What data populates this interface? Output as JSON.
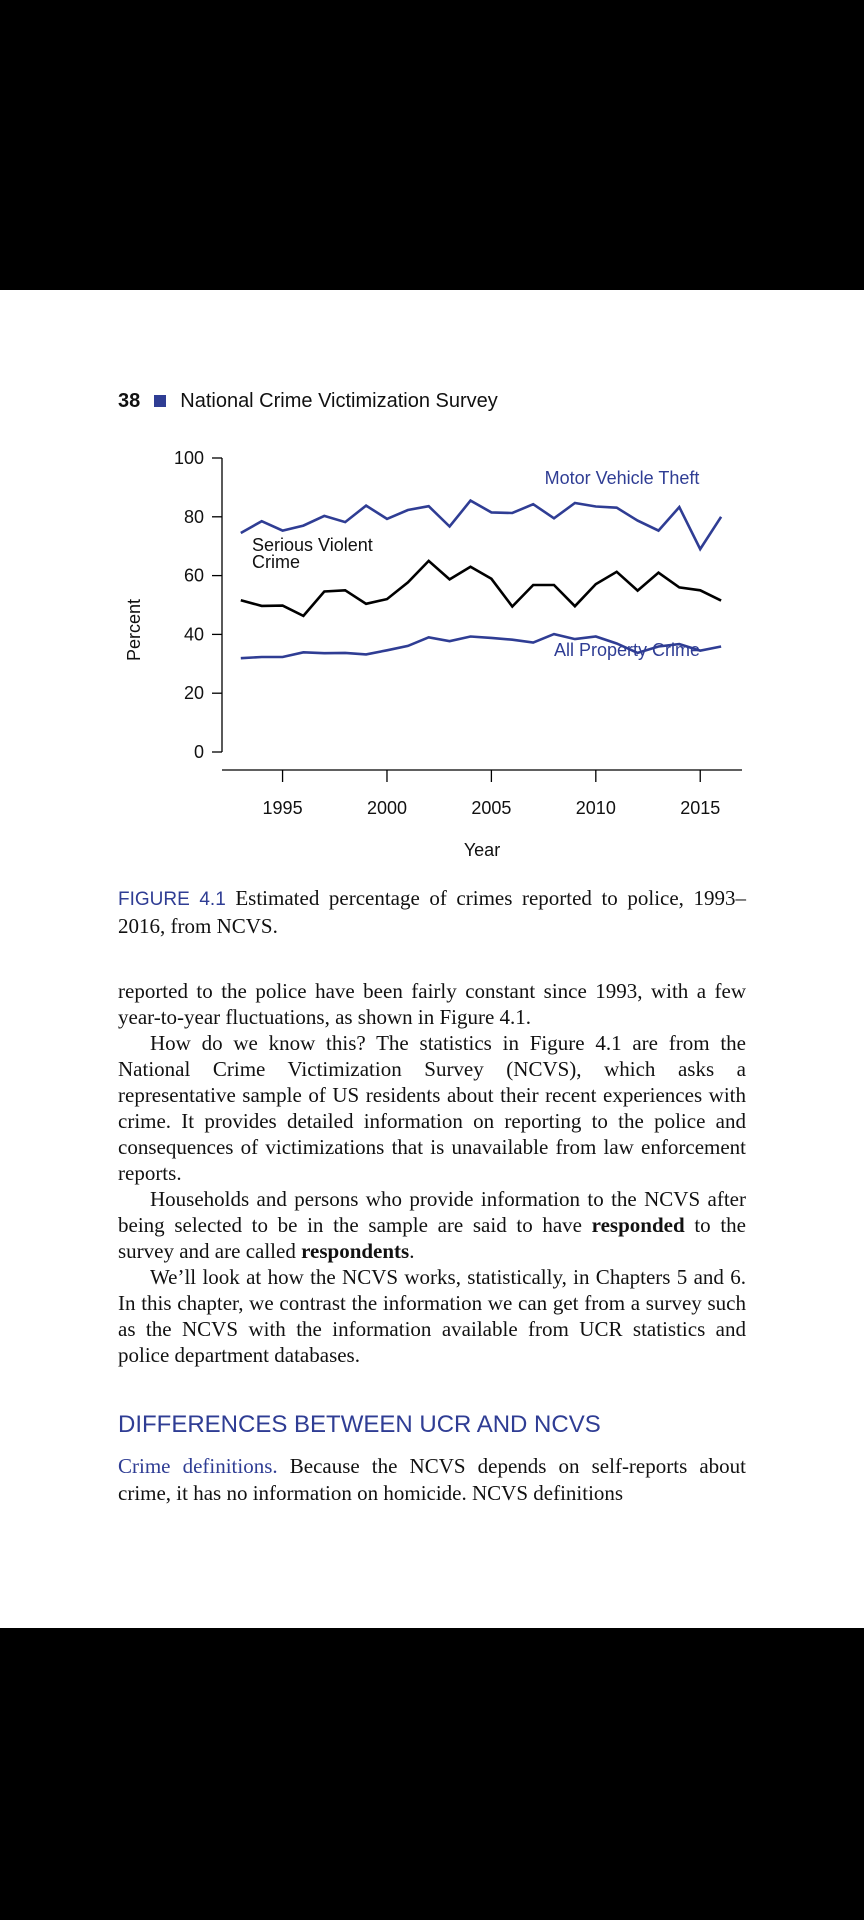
{
  "header": {
    "page_number": "38",
    "title": "National Crime Victimization Survey"
  },
  "chart_data": {
    "type": "line",
    "ylabel": "Percent",
    "xlabel": "Year",
    "xlim": [
      1993,
      2016
    ],
    "ylim": [
      0,
      100
    ],
    "xticks": [
      1995,
      2000,
      2005,
      2010,
      2015
    ],
    "yticks": [
      0,
      20,
      40,
      60,
      80,
      100
    ],
    "grid": false,
    "x": [
      1993,
      1994,
      1995,
      1996,
      1997,
      1998,
      1999,
      2000,
      2001,
      2002,
      2003,
      2004,
      2005,
      2006,
      2007,
      2008,
      2009,
      2010,
      2011,
      2012,
      2013,
      2014,
      2015,
      2016
    ],
    "series": [
      {
        "name": "Motor Vehicle Theft",
        "color": "#2f3d94",
        "values": [
          74.5,
          78.5,
          75.3,
          77,
          80.3,
          78.2,
          83.8,
          79.3,
          82.3,
          83.6,
          76.7,
          85.5,
          81.5,
          81.3,
          84.3,
          79.5,
          84.7,
          83.5,
          83.1,
          78.7,
          75.3,
          83.3,
          69,
          80
        ]
      },
      {
        "name": "Serious Violent Crime",
        "color": "#000000",
        "values": [
          51.6,
          49.7,
          49.8,
          46.3,
          54.6,
          55,
          50.4,
          52,
          57.7,
          65,
          58.7,
          63,
          58.9,
          49.5,
          56.8,
          56.8,
          49.6,
          57.1,
          61.3,
          54.9,
          61,
          56,
          55,
          51.5
        ]
      },
      {
        "name": "All Property Crime",
        "color": "#2f3d94",
        "values": [
          31.9,
          32.3,
          32.3,
          33.9,
          33.6,
          33.7,
          33.2,
          34.6,
          36.1,
          39,
          37.7,
          39.3,
          38.8,
          38.2,
          37.2,
          40.1,
          38.4,
          39.3,
          36.9,
          33.7,
          35.9,
          36.7,
          34.5,
          35.9
        ]
      }
    ]
  },
  "caption": {
    "label": "FIGURE 4.1",
    "text": "Estimated percentage of crimes reported to police, 1993–2016, from NCVS."
  },
  "paragraphs": {
    "p1": "reported to the police have been fairly constant since 1993, with a few year-to-year fluctuations, as shown in Figure 4.1.",
    "p2": "How do we know this? The statistics in Figure 4.1 are from the National Crime Victimization Survey (NCVS), which asks a representative sample of US residents about their recent experiences with crime. It provides detailed information on reporting to the police and consequences of victimizations that is unavailable from law enforcement reports.",
    "p3_a": "Households and persons who provide information to the NCVS after being selected to be in the sample are said to have ",
    "p3_b": "responded",
    "p3_c": " to the survey and are called ",
    "p3_d": "respondents",
    "p3_e": ".",
    "p4": "We’ll look at how the NCVS works, statistically, in Chapters 5 and 6. In this chapter, we contrast the information we can get from a survey such as the NCVS with the information available from UCR statistics and police department databases."
  },
  "section": {
    "title": "DIFFERENCES BETWEEN UCR AND NCVS",
    "lead": "Crime definitions.",
    "text": " Because the NCVS depends on self-reports about crime, it has no information on homicide. NCVS definitions"
  }
}
